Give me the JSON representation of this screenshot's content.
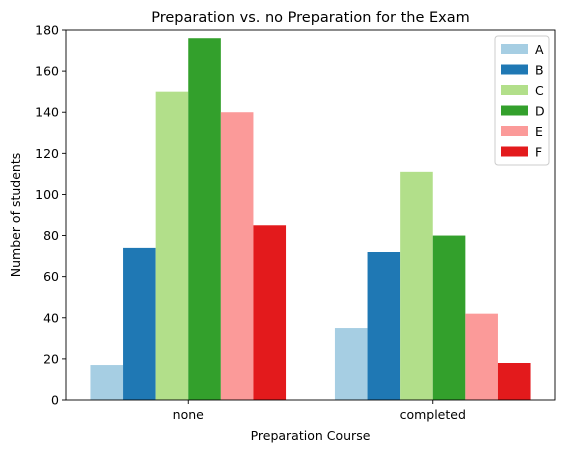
{
  "chart_data": {
    "type": "bar",
    "title": "Preparation vs. no Preparation for the Exam",
    "xlabel": "Preparation Course",
    "ylabel": "Number of students",
    "categories": [
      "none",
      "completed"
    ],
    "ylim": [
      0,
      180
    ],
    "yticks": [
      0,
      20,
      40,
      60,
      80,
      100,
      120,
      140,
      160,
      180
    ],
    "grid": false,
    "legend_position": "top-right",
    "series": [
      {
        "name": "A",
        "color": "#a6cee3",
        "values": [
          17,
          35
        ]
      },
      {
        "name": "B",
        "color": "#1f78b4",
        "values": [
          74,
          72
        ]
      },
      {
        "name": "C",
        "color": "#b2df8a",
        "values": [
          150,
          111
        ]
      },
      {
        "name": "D",
        "color": "#33a02c",
        "values": [
          176,
          80
        ]
      },
      {
        "name": "E",
        "color": "#fb9a99",
        "values": [
          140,
          42
        ]
      },
      {
        "name": "F",
        "color": "#e31a1c",
        "values": [
          85,
          18
        ]
      }
    ]
  }
}
